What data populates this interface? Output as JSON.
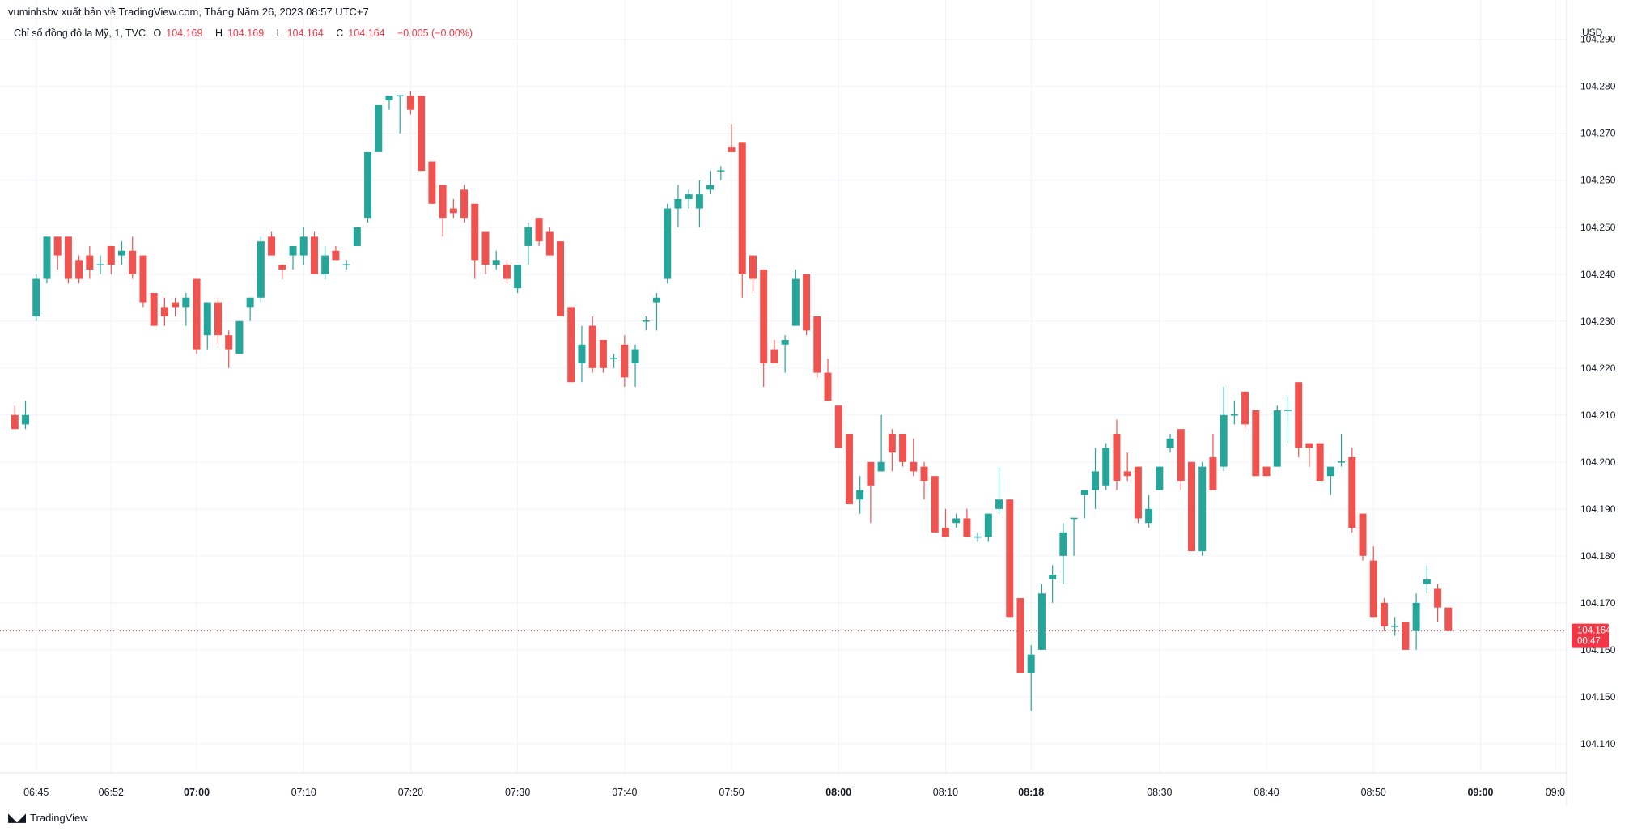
{
  "header": {
    "publisher_line": "vuminhsbv xuất bản về TradingView.com, Tháng Năm 26, 2023 08:57 UTC+7"
  },
  "legend": {
    "symbol": "Chỉ số đồng đô la Mỹ, 1, TVC",
    "open_label": "O",
    "open_value": "104.169",
    "high_label": "H",
    "high_value": "104.169",
    "low_label": "L",
    "low_value": "104.164",
    "close_label": "C",
    "close_value": "104.164",
    "change": "−0.005 (−0.00%)"
  },
  "footer": {
    "brand": "TradingView",
    "logo_icon": "tradingview-logo-icon"
  },
  "colors": {
    "up": "#26a69a",
    "down": "#ef5350",
    "grid": "#f0f3fa",
    "price_line": "#f23645"
  },
  "chart_data": {
    "type": "candlestick",
    "currency_label": "USD",
    "y_ticks": [
      "104.290",
      "104.280",
      "104.270",
      "104.260",
      "104.250",
      "104.240",
      "104.230",
      "104.220",
      "104.210",
      "104.200",
      "104.190",
      "104.180",
      "104.170",
      "104.160",
      "104.150",
      "104.140"
    ],
    "ylim": [
      104.1355,
      104.2915
    ],
    "x_ticks": [
      {
        "label": "06:45",
        "minute": 405,
        "bold": false
      },
      {
        "label": "06:52",
        "minute": 412,
        "bold": false
      },
      {
        "label": "07:00",
        "minute": 420,
        "bold": true
      },
      {
        "label": "07:10",
        "minute": 430,
        "bold": false
      },
      {
        "label": "07:20",
        "minute": 440,
        "bold": false
      },
      {
        "label": "07:30",
        "minute": 450,
        "bold": false
      },
      {
        "label": "07:40",
        "minute": 460,
        "bold": false
      },
      {
        "label": "07:50",
        "minute": 470,
        "bold": false
      },
      {
        "label": "08:00",
        "minute": 480,
        "bold": true
      },
      {
        "label": "08:10",
        "minute": 490,
        "bold": false
      },
      {
        "label": "08:18",
        "minute": 498,
        "bold": true
      },
      {
        "label": "08:30",
        "minute": 510,
        "bold": false
      },
      {
        "label": "08:40",
        "minute": 520,
        "bold": false
      },
      {
        "label": "08:50",
        "minute": 530,
        "bold": false
      },
      {
        "label": "09:00",
        "minute": 540,
        "bold": true
      },
      {
        "label": "09:0",
        "minute": 547,
        "bold": false
      }
    ],
    "last_price": {
      "price": "104.164",
      "countdown": "00:47",
      "value": 104.164
    },
    "candles": [
      {
        "t": "06:43",
        "o": 104.21,
        "h": 104.212,
        "l": 104.207,
        "c": 104.207
      },
      {
        "t": "06:44",
        "o": 104.208,
        "h": 104.213,
        "l": 104.207,
        "c": 104.21
      },
      {
        "t": "06:45",
        "o": 104.231,
        "h": 104.24,
        "l": 104.23,
        "c": 104.239
      },
      {
        "t": "06:46",
        "o": 104.239,
        "h": 104.248,
        "l": 104.238,
        "c": 104.248
      },
      {
        "t": "06:47",
        "o": 104.248,
        "h": 104.248,
        "l": 104.241,
        "c": 104.244
      },
      {
        "t": "06:48",
        "o": 104.248,
        "h": 104.248,
        "l": 104.238,
        "c": 104.239
      },
      {
        "t": "06:49",
        "o": 104.243,
        "h": 104.244,
        "l": 104.238,
        "c": 104.239
      },
      {
        "t": "06:50",
        "o": 104.244,
        "h": 104.246,
        "l": 104.239,
        "c": 104.241
      },
      {
        "t": "06:51",
        "o": 104.242,
        "h": 104.244,
        "l": 104.24,
        "c": 104.242
      },
      {
        "t": "06:52",
        "o": 104.246,
        "h": 104.246,
        "l": 104.24,
        "c": 104.242
      },
      {
        "t": "06:53",
        "o": 104.244,
        "h": 104.247,
        "l": 104.242,
        "c": 104.245
      },
      {
        "t": "06:54",
        "o": 104.245,
        "h": 104.248,
        "l": 104.239,
        "c": 104.24
      },
      {
        "t": "06:55",
        "o": 104.244,
        "h": 104.244,
        "l": 104.233,
        "c": 104.234
      },
      {
        "t": "06:56",
        "o": 104.236,
        "h": 104.236,
        "l": 104.229,
        "c": 104.229
      },
      {
        "t": "06:57",
        "o": 104.233,
        "h": 104.235,
        "l": 104.229,
        "c": 104.231
      },
      {
        "t": "06:58",
        "o": 104.234,
        "h": 104.235,
        "l": 104.231,
        "c": 104.233
      },
      {
        "t": "06:59",
        "o": 104.233,
        "h": 104.236,
        "l": 104.229,
        "c": 104.235
      },
      {
        "t": "07:00",
        "o": 104.239,
        "h": 104.239,
        "l": 104.223,
        "c": 104.224
      },
      {
        "t": "07:01",
        "o": 104.227,
        "h": 104.234,
        "l": 104.224,
        "c": 104.234
      },
      {
        "t": "07:02",
        "o": 104.234,
        "h": 104.235,
        "l": 104.225,
        "c": 104.227
      },
      {
        "t": "07:03",
        "o": 104.227,
        "h": 104.228,
        "l": 104.22,
        "c": 104.224
      },
      {
        "t": "07:04",
        "o": 104.223,
        "h": 104.23,
        "l": 104.223,
        "c": 104.23
      },
      {
        "t": "07:05",
        "o": 104.233,
        "h": 104.235,
        "l": 104.23,
        "c": 104.235
      },
      {
        "t": "07:06",
        "o": 104.235,
        "h": 104.248,
        "l": 104.234,
        "c": 104.247
      },
      {
        "t": "07:07",
        "o": 104.248,
        "h": 104.249,
        "l": 104.244,
        "c": 104.244
      },
      {
        "t": "07:08",
        "o": 104.242,
        "h": 104.242,
        "l": 104.239,
        "c": 104.241
      },
      {
        "t": "07:09",
        "o": 104.244,
        "h": 104.246,
        "l": 104.241,
        "c": 104.246
      },
      {
        "t": "07:10",
        "o": 104.244,
        "h": 104.25,
        "l": 104.242,
        "c": 104.248
      },
      {
        "t": "07:11",
        "o": 104.248,
        "h": 104.249,
        "l": 104.24,
        "c": 104.24
      },
      {
        "t": "07:12",
        "o": 104.24,
        "h": 104.246,
        "l": 104.239,
        "c": 104.244
      },
      {
        "t": "07:13",
        "o": 104.245,
        "h": 104.246,
        "l": 104.243,
        "c": 104.243
      },
      {
        "t": "07:14",
        "o": 104.242,
        "h": 104.243,
        "l": 104.241,
        "c": 104.242
      },
      {
        "t": "07:15",
        "o": 104.246,
        "h": 104.25,
        "l": 104.246,
        "c": 104.25
      },
      {
        "t": "07:16",
        "o": 104.252,
        "h": 104.266,
        "l": 104.251,
        "c": 104.266
      },
      {
        "t": "07:17",
        "o": 104.266,
        "h": 104.276,
        "l": 104.266,
        "c": 104.276
      },
      {
        "t": "07:18",
        "o": 104.277,
        "h": 104.278,
        "l": 104.275,
        "c": 104.278
      },
      {
        "t": "07:19",
        "o": 104.278,
        "h": 104.278,
        "l": 104.27,
        "c": 104.278
      },
      {
        "t": "07:20",
        "o": 104.278,
        "h": 104.279,
        "l": 104.274,
        "c": 104.275
      },
      {
        "t": "07:21",
        "o": 104.278,
        "h": 104.278,
        "l": 104.262,
        "c": 104.262
      },
      {
        "t": "07:22",
        "o": 104.264,
        "h": 104.264,
        "l": 104.255,
        "c": 104.255
      },
      {
        "t": "07:23",
        "o": 104.259,
        "h": 104.259,
        "l": 104.248,
        "c": 104.252
      },
      {
        "t": "07:24",
        "o": 104.254,
        "h": 104.256,
        "l": 104.252,
        "c": 104.253
      },
      {
        "t": "07:25",
        "o": 104.258,
        "h": 104.259,
        "l": 104.251,
        "c": 104.252
      },
      {
        "t": "07:26",
        "o": 104.255,
        "h": 104.255,
        "l": 104.239,
        "c": 104.243
      },
      {
        "t": "07:27",
        "o": 104.249,
        "h": 104.249,
        "l": 104.24,
        "c": 104.242
      },
      {
        "t": "07:28",
        "o": 104.242,
        "h": 104.245,
        "l": 104.241,
        "c": 104.243
      },
      {
        "t": "07:29",
        "o": 104.242,
        "h": 104.243,
        "l": 104.238,
        "c": 104.239
      },
      {
        "t": "07:30",
        "o": 104.237,
        "h": 104.242,
        "l": 104.236,
        "c": 104.242
      },
      {
        "t": "07:31",
        "o": 104.246,
        "h": 104.251,
        "l": 104.242,
        "c": 104.25
      },
      {
        "t": "07:32",
        "o": 104.252,
        "h": 104.252,
        "l": 104.246,
        "c": 104.247
      },
      {
        "t": "07:33",
        "o": 104.249,
        "h": 104.25,
        "l": 104.244,
        "c": 104.244
      },
      {
        "t": "07:34",
        "o": 104.247,
        "h": 104.247,
        "l": 104.231,
        "c": 104.231
      },
      {
        "t": "07:35",
        "o": 104.233,
        "h": 104.233,
        "l": 104.217,
        "c": 104.217
      },
      {
        "t": "07:36",
        "o": 104.221,
        "h": 104.229,
        "l": 104.217,
        "c": 104.225
      },
      {
        "t": "07:37",
        "o": 104.229,
        "h": 104.231,
        "l": 104.219,
        "c": 104.22
      },
      {
        "t": "07:38",
        "o": 104.226,
        "h": 104.226,
        "l": 104.219,
        "c": 104.22
      },
      {
        "t": "07:39",
        "o": 104.222,
        "h": 104.223,
        "l": 104.22,
        "c": 104.222
      },
      {
        "t": "07:40",
        "o": 104.225,
        "h": 104.227,
        "l": 104.216,
        "c": 104.218
      },
      {
        "t": "07:41",
        "o": 104.221,
        "h": 104.225,
        "l": 104.216,
        "c": 104.224
      },
      {
        "t": "07:42",
        "o": 104.23,
        "h": 104.231,
        "l": 104.228,
        "c": 104.23
      },
      {
        "t": "07:43",
        "o": 104.234,
        "h": 104.236,
        "l": 104.228,
        "c": 104.235
      },
      {
        "t": "07:44",
        "o": 104.239,
        "h": 104.255,
        "l": 104.238,
        "c": 104.254
      },
      {
        "t": "07:45",
        "o": 104.254,
        "h": 104.259,
        "l": 104.25,
        "c": 104.256
      },
      {
        "t": "07:46",
        "o": 104.256,
        "h": 104.258,
        "l": 104.254,
        "c": 104.257
      },
      {
        "t": "07:47",
        "o": 104.254,
        "h": 104.26,
        "l": 104.25,
        "c": 104.257
      },
      {
        "t": "07:48",
        "o": 104.258,
        "h": 104.262,
        "l": 104.257,
        "c": 104.259
      },
      {
        "t": "07:49",
        "o": 104.262,
        "h": 104.263,
        "l": 104.26,
        "c": 104.262
      },
      {
        "t": "07:50",
        "o": 104.267,
        "h": 104.272,
        "l": 104.266,
        "c": 104.266
      },
      {
        "t": "07:51",
        "o": 104.268,
        "h": 104.268,
        "l": 104.235,
        "c": 104.24
      },
      {
        "t": "07:52",
        "o": 104.244,
        "h": 104.244,
        "l": 104.236,
        "c": 104.239
      },
      {
        "t": "07:53",
        "o": 104.241,
        "h": 104.241,
        "l": 104.216,
        "c": 104.221
      },
      {
        "t": "07:54",
        "o": 104.224,
        "h": 104.226,
        "l": 104.221,
        "c": 104.221
      },
      {
        "t": "07:55",
        "o": 104.225,
        "h": 104.227,
        "l": 104.219,
        "c": 104.226
      },
      {
        "t": "07:56",
        "o": 104.229,
        "h": 104.241,
        "l": 104.229,
        "c": 104.239
      },
      {
        "t": "07:57",
        "o": 104.24,
        "h": 104.24,
        "l": 104.227,
        "c": 104.228
      },
      {
        "t": "07:58",
        "o": 104.231,
        "h": 104.231,
        "l": 104.218,
        "c": 104.219
      },
      {
        "t": "07:59",
        "o": 104.219,
        "h": 104.222,
        "l": 104.213,
        "c": 104.213
      },
      {
        "t": "08:00",
        "o": 104.212,
        "h": 104.212,
        "l": 104.203,
        "c": 104.203
      },
      {
        "t": "08:01",
        "o": 104.206,
        "h": 104.206,
        "l": 104.191,
        "c": 104.191
      },
      {
        "t": "08:02",
        "o": 104.192,
        "h": 104.197,
        "l": 104.189,
        "c": 104.194
      },
      {
        "t": "08:03",
        "o": 104.2,
        "h": 104.2,
        "l": 104.187,
        "c": 104.195
      },
      {
        "t": "08:04",
        "o": 104.198,
        "h": 104.21,
        "l": 104.198,
        "c": 104.2
      },
      {
        "t": "08:05",
        "o": 104.206,
        "h": 104.207,
        "l": 104.198,
        "c": 104.202
      },
      {
        "t": "08:06",
        "o": 104.206,
        "h": 104.206,
        "l": 104.199,
        "c": 104.2
      },
      {
        "t": "08:07",
        "o": 104.2,
        "h": 104.205,
        "l": 104.197,
        "c": 104.198
      },
      {
        "t": "08:08",
        "o": 104.199,
        "h": 104.2,
        "l": 104.192,
        "c": 104.196
      },
      {
        "t": "08:09",
        "o": 104.197,
        "h": 104.197,
        "l": 104.185,
        "c": 104.185
      },
      {
        "t": "08:10",
        "o": 104.186,
        "h": 104.19,
        "l": 104.184,
        "c": 104.184
      },
      {
        "t": "08:11",
        "o": 104.187,
        "h": 104.189,
        "l": 104.186,
        "c": 104.188
      },
      {
        "t": "08:12",
        "o": 104.188,
        "h": 104.19,
        "l": 104.184,
        "c": 104.184
      },
      {
        "t": "08:13",
        "o": 104.184,
        "h": 104.185,
        "l": 104.183,
        "c": 104.184
      },
      {
        "t": "08:14",
        "o": 104.184,
        "h": 104.189,
        "l": 104.183,
        "c": 104.189
      },
      {
        "t": "08:15",
        "o": 104.19,
        "h": 104.199,
        "l": 104.189,
        "c": 104.192
      },
      {
        "t": "08:16",
        "o": 104.192,
        "h": 104.192,
        "l": 104.167,
        "c": 104.167
      },
      {
        "t": "08:17",
        "o": 104.171,
        "h": 104.171,
        "l": 104.155,
        "c": 104.155
      },
      {
        "t": "08:18",
        "o": 104.155,
        "h": 104.161,
        "l": 104.147,
        "c": 104.159
      },
      {
        "t": "08:19",
        "o": 104.16,
        "h": 104.174,
        "l": 104.16,
        "c": 104.172
      },
      {
        "t": "08:20",
        "o": 104.175,
        "h": 104.178,
        "l": 104.17,
        "c": 104.176
      },
      {
        "t": "08:21",
        "o": 104.18,
        "h": 104.187,
        "l": 104.174,
        "c": 104.185
      },
      {
        "t": "08:22",
        "o": 104.188,
        "h": 104.188,
        "l": 104.18,
        "c": 104.188
      },
      {
        "t": "08:23",
        "o": 104.193,
        "h": 104.194,
        "l": 104.188,
        "c": 104.194
      },
      {
        "t": "08:24",
        "o": 104.194,
        "h": 104.203,
        "l": 104.19,
        "c": 104.198
      },
      {
        "t": "08:25",
        "o": 104.195,
        "h": 104.204,
        "l": 104.194,
        "c": 104.203
      },
      {
        "t": "08:26",
        "o": 104.206,
        "h": 104.209,
        "l": 104.194,
        "c": 104.196
      },
      {
        "t": "08:27",
        "o": 104.198,
        "h": 104.202,
        "l": 104.196,
        "c": 104.197
      },
      {
        "t": "08:28",
        "o": 104.199,
        "h": 104.199,
        "l": 104.187,
        "c": 104.188
      },
      {
        "t": "08:29",
        "o": 104.187,
        "h": 104.193,
        "l": 104.186,
        "c": 104.19
      },
      {
        "t": "08:30",
        "o": 104.194,
        "h": 104.199,
        "l": 104.194,
        "c": 104.199
      },
      {
        "t": "08:31",
        "o": 104.203,
        "h": 104.206,
        "l": 104.202,
        "c": 104.205
      },
      {
        "t": "08:32",
        "o": 104.207,
        "h": 104.207,
        "l": 104.194,
        "c": 104.196
      },
      {
        "t": "08:33",
        "o": 104.2,
        "h": 104.2,
        "l": 104.181,
        "c": 104.181
      },
      {
        "t": "08:34",
        "o": 104.181,
        "h": 104.2,
        "l": 104.18,
        "c": 104.199
      },
      {
        "t": "08:35",
        "o": 104.201,
        "h": 104.206,
        "l": 104.194,
        "c": 104.194
      },
      {
        "t": "08:36",
        "o": 104.199,
        "h": 104.216,
        "l": 104.198,
        "c": 104.21
      },
      {
        "t": "08:37",
        "o": 104.21,
        "h": 104.213,
        "l": 104.208,
        "c": 104.21
      },
      {
        "t": "08:38",
        "o": 104.215,
        "h": 104.215,
        "l": 104.207,
        "c": 104.208
      },
      {
        "t": "08:39",
        "o": 104.211,
        "h": 104.211,
        "l": 104.197,
        "c": 104.197
      },
      {
        "t": "08:40",
        "o": 104.199,
        "h": 104.199,
        "l": 104.197,
        "c": 104.197
      },
      {
        "t": "08:41",
        "o": 104.199,
        "h": 104.212,
        "l": 104.199,
        "c": 104.211
      },
      {
        "t": "08:42",
        "o": 104.211,
        "h": 104.214,
        "l": 104.204,
        "c": 104.211
      },
      {
        "t": "08:43",
        "o": 104.217,
        "h": 104.217,
        "l": 104.201,
        "c": 104.203
      },
      {
        "t": "08:44",
        "o": 104.204,
        "h": 104.204,
        "l": 104.199,
        "c": 104.203
      },
      {
        "t": "08:45",
        "o": 104.204,
        "h": 104.204,
        "l": 104.196,
        "c": 104.196
      },
      {
        "t": "08:46",
        "o": 104.197,
        "h": 104.199,
        "l": 104.193,
        "c": 104.199
      },
      {
        "t": "08:47",
        "o": 104.2,
        "h": 104.206,
        "l": 104.199,
        "c": 104.2
      },
      {
        "t": "08:48",
        "o": 104.201,
        "h": 104.203,
        "l": 104.185,
        "c": 104.186
      },
      {
        "t": "08:49",
        "o": 104.189,
        "h": 104.189,
        "l": 104.179,
        "c": 104.18
      },
      {
        "t": "08:50",
        "o": 104.179,
        "h": 104.182,
        "l": 104.167,
        "c": 104.167
      },
      {
        "t": "08:51",
        "o": 104.17,
        "h": 104.171,
        "l": 104.164,
        "c": 104.165
      },
      {
        "t": "08:52",
        "o": 104.165,
        "h": 104.167,
        "l": 104.163,
        "c": 104.165
      },
      {
        "t": "08:53",
        "o": 104.166,
        "h": 104.166,
        "l": 104.16,
        "c": 104.16
      },
      {
        "t": "08:54",
        "o": 104.164,
        "h": 104.172,
        "l": 104.16,
        "c": 104.17
      },
      {
        "t": "08:55",
        "o": 104.174,
        "h": 104.178,
        "l": 104.172,
        "c": 104.175
      },
      {
        "t": "08:56",
        "o": 104.173,
        "h": 104.174,
        "l": 104.166,
        "c": 104.169
      },
      {
        "t": "08:57",
        "o": 104.169,
        "h": 104.169,
        "l": 104.164,
        "c": 104.164
      }
    ]
  }
}
